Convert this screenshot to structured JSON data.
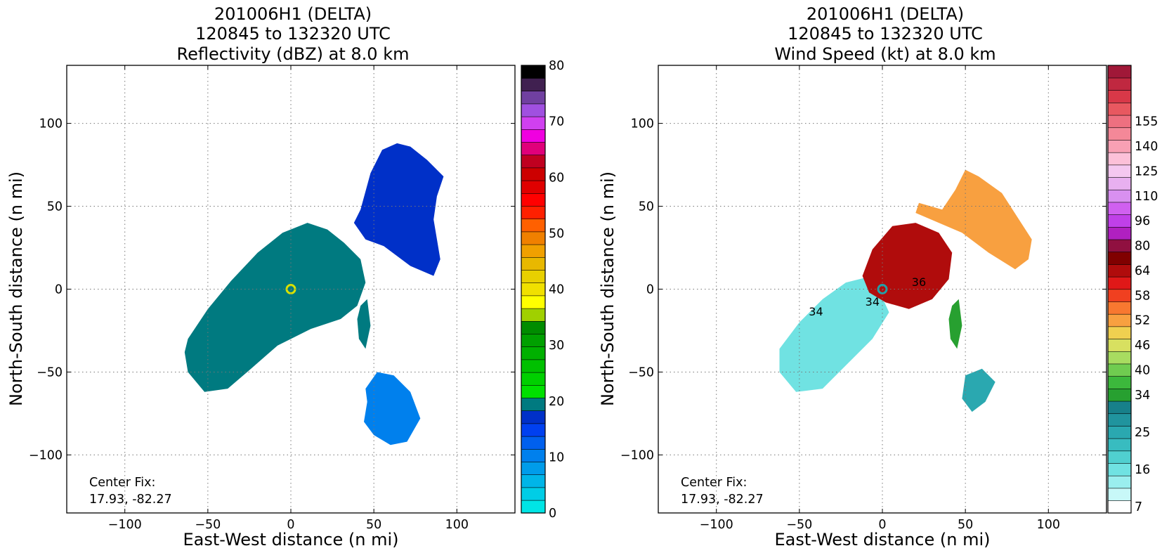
{
  "panels": [
    {
      "title_lines": [
        "201006H1 (DELTA)",
        "120845 to 132320 UTC",
        "Reflectivity (dBZ) at 8.0 km"
      ],
      "xlabel": "East-West distance (n mi)",
      "ylabel": "North-South distance (n mi)",
      "center_fix": [
        "Center Fix:",
        "17.93, -82.27"
      ]
    },
    {
      "title_lines": [
        "201006H1 (DELTA)",
        "120845 to 132320 UTC",
        "Wind Speed (kt) at 8.0 km"
      ],
      "xlabel": "East-West distance (n mi)",
      "ylabel": "North-South distance (n mi)",
      "center_fix": [
        "Center Fix:",
        "17.93, -82.27"
      ]
    }
  ],
  "chart_data": [
    {
      "type": "heatmap",
      "variable": "Reflectivity",
      "units": "dBZ",
      "level_km": 8.0,
      "xlim": [
        -135,
        135
      ],
      "ylim": [
        -135,
        135
      ],
      "x_ticks": [
        -100,
        -50,
        0,
        50,
        100
      ],
      "y_ticks": [
        -100,
        -50,
        0,
        50,
        100
      ],
      "x_tick_labels": [
        "−100",
        "−50",
        "0",
        "50",
        "100"
      ],
      "y_tick_labels": [
        "−100",
        "−50",
        "0",
        "50",
        "100"
      ],
      "grid": "dotted",
      "colorbar": {
        "min": 0,
        "max": 80,
        "step": 2.5,
        "ticks": [
          0,
          10,
          20,
          30,
          40,
          50,
          60,
          70,
          80
        ],
        "tick_labels": [
          "0",
          "10",
          "20",
          "30",
          "40",
          "50",
          "60",
          "70",
          "80"
        ],
        "colors": [
          "#00e5e5",
          "#00cde6",
          "#00b5e8",
          "#009cea",
          "#0080ed",
          "#0060ee",
          "#0040f0",
          "#0030c8",
          "#007a80",
          "#00e000",
          "#00d000",
          "#00c000",
          "#00b000",
          "#00a000",
          "#008c00",
          "#a0d000",
          "#ffff00",
          "#f0e000",
          "#e8d000",
          "#e8b800",
          "#f0a000",
          "#f08000",
          "#ff6000",
          "#ff2000",
          "#ff0000",
          "#e00000",
          "#cc0000",
          "#c00020",
          "#e0007a",
          "#f000e0",
          "#d040f0",
          "#a050e0",
          "#7040a0",
          "#402050",
          "#000000"
        ]
      },
      "areas": [
        {
          "name": "main band",
          "value_dbz": 22,
          "polygon": [
            [
              -62,
              -30
            ],
            [
              -50,
              -12
            ],
            [
              -36,
              5
            ],
            [
              -20,
              22
            ],
            [
              -5,
              34
            ],
            [
              10,
              40
            ],
            [
              22,
              36
            ],
            [
              32,
              28
            ],
            [
              42,
              18
            ],
            [
              45,
              4
            ],
            [
              40,
              -10
            ],
            [
              30,
              -18
            ],
            [
              12,
              -24
            ],
            [
              -8,
              -34
            ],
            [
              -24,
              -48
            ],
            [
              -38,
              -60
            ],
            [
              -52,
              -62
            ],
            [
              -62,
              -50
            ],
            [
              -64,
              -38
            ]
          ]
        },
        {
          "name": "northeast band",
          "value_dbz": 18,
          "polygon": [
            [
              42,
              48
            ],
            [
              48,
              70
            ],
            [
              55,
              84
            ],
            [
              64,
              88
            ],
            [
              72,
              86
            ],
            [
              82,
              78
            ],
            [
              92,
              68
            ],
            [
              88,
              56
            ],
            [
              86,
              42
            ],
            [
              90,
              18
            ],
            [
              86,
              8
            ],
            [
              72,
              14
            ],
            [
              56,
              26
            ],
            [
              45,
              30
            ],
            [
              38,
              40
            ]
          ]
        },
        {
          "name": "south cell",
          "value_dbz": 10,
          "polygon": [
            [
              45,
              -60
            ],
            [
              52,
              -50
            ],
            [
              62,
              -52
            ],
            [
              72,
              -62
            ],
            [
              78,
              -78
            ],
            [
              70,
              -92
            ],
            [
              60,
              -94
            ],
            [
              50,
              -88
            ],
            [
              44,
              -80
            ],
            [
              46,
              -68
            ]
          ]
        },
        {
          "name": "east strip",
          "value_dbz": 20,
          "polygon": [
            [
              42,
              -10
            ],
            [
              46,
              -6
            ],
            [
              48,
              -22
            ],
            [
              45,
              -36
            ],
            [
              41,
              -30
            ],
            [
              40,
              -18
            ]
          ]
        }
      ],
      "eye_center": [
        0,
        0
      ]
    },
    {
      "type": "heatmap",
      "variable": "Wind Speed",
      "units": "kt",
      "level_km": 8.0,
      "xlim": [
        -135,
        135
      ],
      "ylim": [
        -135,
        135
      ],
      "x_ticks": [
        -100,
        -50,
        0,
        50,
        100
      ],
      "y_ticks": [
        -100,
        -50,
        0,
        50,
        100
      ],
      "x_tick_labels": [
        "−100",
        "−50",
        "0",
        "50",
        "100"
      ],
      "y_tick_labels": [
        "−100",
        "−50",
        "0",
        "50",
        "100"
      ],
      "grid": "dotted",
      "contour_labels": [
        {
          "text": "34",
          "x": -40,
          "y": -16
        },
        {
          "text": "34",
          "x": -6,
          "y": -10
        },
        {
          "text": "36",
          "x": 22,
          "y": 2
        }
      ],
      "colorbar": {
        "levels": 36,
        "ticks": [
          7,
          16,
          25,
          34,
          40,
          46,
          52,
          58,
          64,
          80,
          96,
          110,
          125,
          140,
          155
        ],
        "tick_labels": [
          "7",
          "16",
          "25",
          "34",
          "40",
          "46",
          "52",
          "58",
          "64",
          "80",
          "96",
          "110",
          "125",
          "140",
          "155"
        ],
        "tick_bins": [
          0,
          3,
          6,
          9,
          11,
          13,
          15,
          17,
          19,
          21,
          23,
          25,
          27,
          29,
          31
        ],
        "colors": [
          "#ffffff",
          "#c8f8f8",
          "#9aeeee",
          "#70e2e2",
          "#50d0d0",
          "#38bcc0",
          "#2aa8b0",
          "#20949e",
          "#17808a",
          "#27a030",
          "#3cb83c",
          "#70cc50",
          "#a8dc60",
          "#d8e060",
          "#f0d050",
          "#f8a040",
          "#f87830",
          "#f04020",
          "#e01818",
          "#b00c0c",
          "#800000",
          "#901040",
          "#b020c0",
          "#c040e8",
          "#d060f0",
          "#d890f0",
          "#e8b0f0",
          "#f4c8f0",
          "#fcc0d8",
          "#f8a0b4",
          "#f48898",
          "#ee7080",
          "#e85860",
          "#d83848",
          "#c02840",
          "#a01838"
        ]
      },
      "areas": [
        {
          "name": "outer low winds",
          "value_kt": 18,
          "polygon": [
            [
              -62,
              -36
            ],
            [
              -50,
              -20
            ],
            [
              -36,
              -6
            ],
            [
              -22,
              4
            ],
            [
              -6,
              8
            ],
            [
              4,
              -14
            ],
            [
              -6,
              -30
            ],
            [
              -22,
              -46
            ],
            [
              -36,
              -60
            ],
            [
              -52,
              -62
            ],
            [
              -62,
              -50
            ]
          ]
        },
        {
          "name": "inner core high winds",
          "value_kt": 70,
          "polygon": [
            [
              -12,
              8
            ],
            [
              -6,
              24
            ],
            [
              6,
              38
            ],
            [
              20,
              40
            ],
            [
              34,
              34
            ],
            [
              42,
              22
            ],
            [
              40,
              6
            ],
            [
              30,
              -6
            ],
            [
              16,
              -12
            ],
            [
              2,
              -8
            ],
            [
              -8,
              -2
            ]
          ]
        },
        {
          "name": "northeast band",
          "value_kt": 52,
          "polygon": [
            [
              22,
              52
            ],
            [
              36,
              48
            ],
            [
              44,
              60
            ],
            [
              50,
              72
            ],
            [
              58,
              68
            ],
            [
              72,
              58
            ],
            [
              90,
              30
            ],
            [
              88,
              18
            ],
            [
              80,
              12
            ],
            [
              64,
              22
            ],
            [
              48,
              34
            ],
            [
              34,
              40
            ],
            [
              20,
              46
            ]
          ]
        },
        {
          "name": "south cell",
          "value_kt": 25,
          "polygon": [
            [
              50,
              -52
            ],
            [
              60,
              -48
            ],
            [
              68,
              -56
            ],
            [
              62,
              -68
            ],
            [
              54,
              -74
            ],
            [
              48,
              -66
            ]
          ]
        },
        {
          "name": "east strip",
          "value_kt": 36,
          "polygon": [
            [
              42,
              -10
            ],
            [
              46,
              -6
            ],
            [
              48,
              -22
            ],
            [
              45,
              -36
            ],
            [
              41,
              -30
            ],
            [
              40,
              -18
            ]
          ]
        }
      ],
      "eye_center": [
        0,
        0
      ]
    }
  ]
}
